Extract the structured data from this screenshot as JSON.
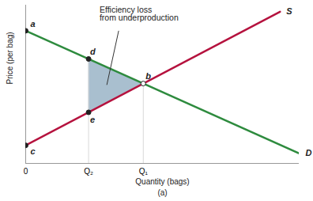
{
  "chart_data": {
    "type": "line",
    "xlabel": "Quantity (bags)",
    "ylabel": "Price (per bag)",
    "caption": "(a)",
    "xlim": [
      0,
      10
    ],
    "ylim": [
      0,
      10.5
    ],
    "xticks": [
      0,
      {
        "value": 2.3,
        "label": "Q₂"
      },
      {
        "value": 4.3,
        "label": "Q₁"
      }
    ],
    "yticks": [],
    "tick_labels": "x",
    "series": [
      {
        "name": "D",
        "color": "#2e8b3e",
        "x": [
          0,
          10
        ],
        "values": [
          8.8,
          0.66
        ]
      },
      {
        "name": "S",
        "color": "#b5123e",
        "x": [
          0,
          9.3
        ],
        "values": [
          1.2,
          10.06
        ]
      }
    ],
    "points": [
      {
        "label": "a",
        "x": 0,
        "y": 8.8,
        "marker": "circle"
      },
      {
        "label": "b",
        "x": 4.3,
        "y": 5.3,
        "marker": "open_circle"
      },
      {
        "label": "c",
        "x": 0,
        "y": 1.2,
        "marker": "circle"
      },
      {
        "label": "d",
        "x": 2.3,
        "y": 6.93,
        "marker": "circle"
      },
      {
        "label": "e",
        "x": 2.3,
        "y": 3.39,
        "marker": "circle"
      }
    ],
    "annotation": {
      "text": "Efficiency loss\nfrom underproduction",
      "x": 2.7,
      "y": 10.4
    }
  }
}
